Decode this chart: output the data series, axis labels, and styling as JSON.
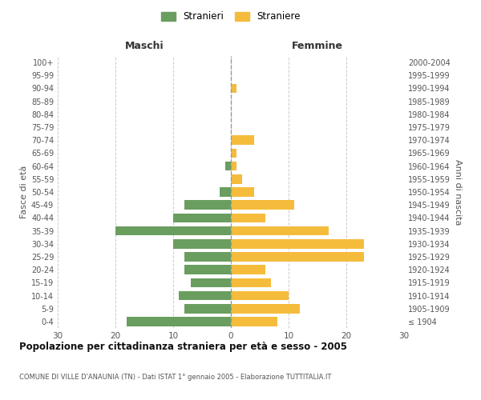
{
  "age_groups": [
    "100+",
    "95-99",
    "90-94",
    "85-89",
    "80-84",
    "75-79",
    "70-74",
    "65-69",
    "60-64",
    "55-59",
    "50-54",
    "45-49",
    "40-44",
    "35-39",
    "30-34",
    "25-29",
    "20-24",
    "15-19",
    "10-14",
    "5-9",
    "0-4"
  ],
  "birth_years": [
    "≤ 1904",
    "1905-1909",
    "1910-1914",
    "1915-1919",
    "1920-1924",
    "1925-1929",
    "1930-1934",
    "1935-1939",
    "1940-1944",
    "1945-1949",
    "1950-1954",
    "1955-1959",
    "1960-1964",
    "1965-1969",
    "1970-1974",
    "1975-1979",
    "1980-1984",
    "1985-1989",
    "1990-1994",
    "1995-1999",
    "2000-2004"
  ],
  "maschi": [
    0,
    0,
    0,
    0,
    0,
    0,
    0,
    0,
    1,
    0,
    2,
    8,
    10,
    20,
    10,
    8,
    8,
    7,
    9,
    8,
    18
  ],
  "femmine": [
    0,
    0,
    1,
    0,
    0,
    0,
    4,
    1,
    1,
    2,
    4,
    11,
    6,
    17,
    23,
    23,
    6,
    7,
    10,
    12,
    8
  ],
  "male_color": "#6a9e5f",
  "female_color": "#f5bc3c",
  "background_color": "#ffffff",
  "grid_color": "#cccccc",
  "title": "Popolazione per cittadinanza straniera per età e sesso - 2005",
  "subtitle": "COMUNE DI VILLE D'ANAUNIA (TN) - Dati ISTAT 1° gennaio 2005 - Elaborazione TUTTITALIA.IT",
  "xlabel_left": "Maschi",
  "xlabel_right": "Femmine",
  "ylabel_left": "Fasce di età",
  "ylabel_right": "Anni di nascita",
  "legend_male": "Stranieri",
  "legend_female": "Straniere",
  "xlim": 30
}
